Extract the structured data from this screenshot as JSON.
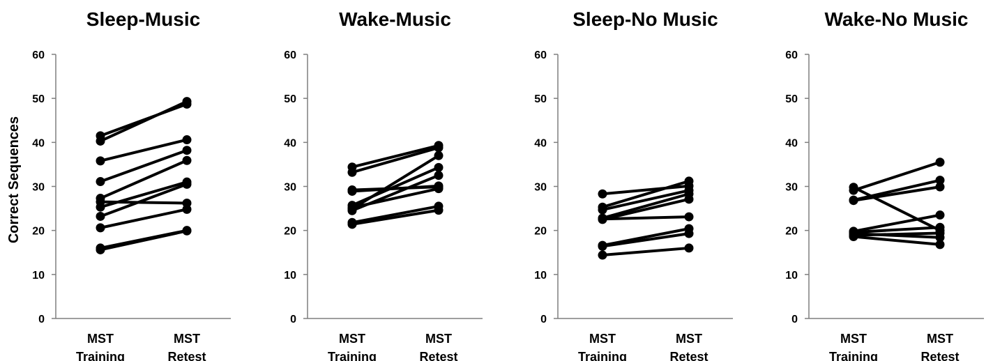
{
  "ylabel": "Correct Sequences",
  "chart_data": [
    {
      "type": "line",
      "title": "Sleep-Music",
      "categories": [
        [
          "MST",
          "Training"
        ],
        [
          "MST",
          "Retest"
        ]
      ],
      "ylim": [
        0,
        60
      ],
      "yticks": [
        0,
        10,
        20,
        30,
        40,
        50,
        60
      ],
      "series": [
        {
          "values": [
            41.5,
            48.7
          ]
        },
        {
          "values": [
            40.3,
            49.3
          ]
        },
        {
          "values": [
            35.8,
            40.6
          ]
        },
        {
          "values": [
            31.1,
            38.2
          ]
        },
        {
          "values": [
            27.3,
            35.9
          ]
        },
        {
          "values": [
            26.5,
            26.2
          ]
        },
        {
          "values": [
            25.3,
            31.0
          ]
        },
        {
          "values": [
            23.2,
            30.5
          ]
        },
        {
          "values": [
            20.6,
            24.8
          ]
        },
        {
          "values": [
            16.0,
            20.0
          ]
        },
        {
          "values": [
            15.6,
            19.9
          ]
        }
      ]
    },
    {
      "type": "line",
      "title": "Wake-Music",
      "categories": [
        [
          "MST",
          "Training"
        ],
        [
          "MST",
          "Retest"
        ]
      ],
      "ylim": [
        0,
        60
      ],
      "yticks": [
        0,
        10,
        20,
        30,
        40,
        50,
        60
      ],
      "series": [
        {
          "values": [
            34.4,
            39.3
          ]
        },
        {
          "values": [
            33.2,
            38.8
          ]
        },
        {
          "values": [
            29.2,
            29.9
          ]
        },
        {
          "values": [
            28.9,
            30.1
          ]
        },
        {
          "values": [
            25.7,
            34.3
          ]
        },
        {
          "values": [
            24.9,
            37.0
          ]
        },
        {
          "values": [
            24.5,
            32.5
          ]
        },
        {
          "values": [
            21.8,
            25.5
          ]
        },
        {
          "values": [
            21.4,
            24.6
          ]
        },
        {
          "values": [
            25.2,
            29.5
          ]
        }
      ]
    },
    {
      "type": "line",
      "title": "Sleep-No Music",
      "categories": [
        [
          "MST",
          "Training"
        ],
        [
          "MST",
          "Retest"
        ]
      ],
      "ylim": [
        0,
        60
      ],
      "yticks": [
        0,
        10,
        20,
        30,
        40,
        50,
        60
      ],
      "series": [
        {
          "values": [
            28.3,
            30.1
          ]
        },
        {
          "values": [
            25.3,
            31.2
          ]
        },
        {
          "values": [
            24.7,
            29.1
          ]
        },
        {
          "values": [
            22.8,
            28.3
          ]
        },
        {
          "values": [
            22.5,
            27.1
          ]
        },
        {
          "values": [
            22.6,
            23.1
          ]
        },
        {
          "values": [
            16.6,
            20.4
          ]
        },
        {
          "values": [
            16.4,
            19.3
          ]
        },
        {
          "values": [
            14.4,
            16.0
          ]
        }
      ]
    },
    {
      "type": "line",
      "title": "Wake-No Music",
      "categories": [
        [
          "MST",
          "Training"
        ],
        [
          "MST",
          "Retest"
        ]
      ],
      "ylim": [
        0,
        60
      ],
      "yticks": [
        0,
        10,
        20,
        30,
        40,
        50,
        60
      ],
      "series": [
        {
          "values": [
            29.8,
            20.0
          ]
        },
        {
          "values": [
            29.1,
            35.5
          ]
        },
        {
          "values": [
            26.9,
            31.4
          ]
        },
        {
          "values": [
            26.8,
            29.9
          ]
        },
        {
          "values": [
            19.8,
            23.5
          ]
        },
        {
          "values": [
            19.6,
            20.7
          ]
        },
        {
          "values": [
            19.3,
            18.4
          ]
        },
        {
          "values": [
            18.9,
            19.4
          ]
        },
        {
          "values": [
            18.6,
            16.8
          ]
        }
      ]
    }
  ]
}
